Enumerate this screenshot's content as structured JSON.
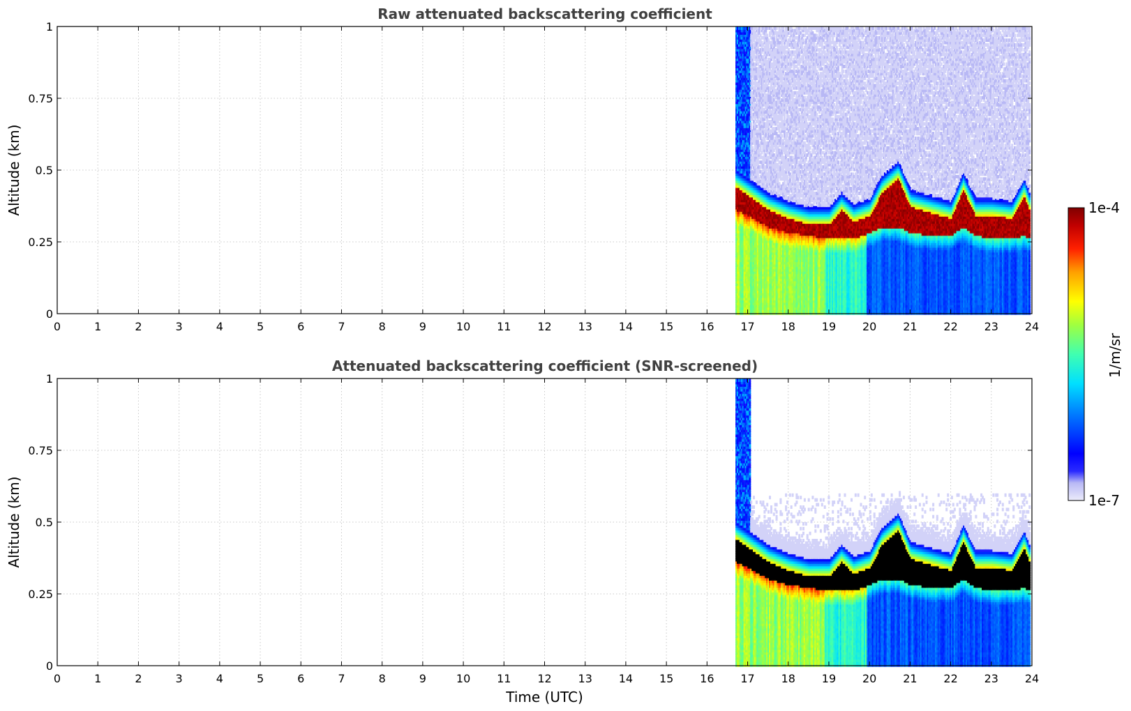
{
  "colors": {
    "background": "#ffffff",
    "title_text": "#404040",
    "grid": "#c8c8c8",
    "below_threshold": "#000000",
    "colormap": [
      "#e6e6fa",
      "#0000ff",
      "#00aaff",
      "#00ffff",
      "#66ff66",
      "#ffff00",
      "#ff8000",
      "#ff0000",
      "#8b0000"
    ]
  },
  "chart_data": [
    {
      "type": "heatmap",
      "title": "Raw attenuated backscattering coefficient",
      "xlabel": "",
      "ylabel": "Altitude (km)",
      "xlim": [
        0,
        24
      ],
      "ylim": [
        0,
        1
      ],
      "x_ticks": [
        "0",
        "1",
        "2",
        "3",
        "4",
        "5",
        "6",
        "7",
        "8",
        "9",
        "10",
        "11",
        "12",
        "13",
        "14",
        "15",
        "16",
        "17",
        "18",
        "19",
        "20",
        "21",
        "22",
        "23",
        "24"
      ],
      "y_ticks": [
        "0",
        "0.25",
        "0.5",
        "0.75",
        "1"
      ],
      "grid": true,
      "data_start_time": 16.7,
      "data_end_time": 23.95,
      "layer_top_km": [
        [
          16.7,
          0.44
        ],
        [
          17.0,
          0.41
        ],
        [
          17.5,
          0.36
        ],
        [
          18.0,
          0.33
        ],
        [
          18.5,
          0.31
        ],
        [
          19.0,
          0.31
        ],
        [
          19.3,
          0.36
        ],
        [
          19.6,
          0.32
        ],
        [
          20.0,
          0.34
        ],
        [
          20.3,
          0.42
        ],
        [
          20.7,
          0.47
        ],
        [
          21.0,
          0.37
        ],
        [
          21.5,
          0.35
        ],
        [
          22.0,
          0.33
        ],
        [
          22.3,
          0.43
        ],
        [
          22.6,
          0.34
        ],
        [
          23.0,
          0.34
        ],
        [
          23.5,
          0.33
        ],
        [
          23.8,
          0.41
        ],
        [
          23.95,
          0.35
        ]
      ],
      "layer_base_km": [
        [
          16.7,
          0.36
        ],
        [
          17.0,
          0.34
        ],
        [
          17.5,
          0.3
        ],
        [
          18.0,
          0.28
        ],
        [
          18.5,
          0.27
        ],
        [
          19.0,
          0.26
        ],
        [
          19.3,
          0.26
        ],
        [
          19.6,
          0.26
        ],
        [
          20.0,
          0.28
        ],
        [
          20.3,
          0.3
        ],
        [
          20.7,
          0.3
        ],
        [
          21.0,
          0.28
        ],
        [
          21.5,
          0.27
        ],
        [
          22.0,
          0.27
        ],
        [
          22.3,
          0.3
        ],
        [
          22.6,
          0.27
        ],
        [
          23.0,
          0.26
        ],
        [
          23.5,
          0.26
        ],
        [
          23.8,
          0.27
        ],
        [
          23.95,
          0.26
        ]
      ]
    },
    {
      "type": "heatmap",
      "title": "Attenuated backscattering coefficient (SNR-screened)",
      "xlabel": "Time (UTC)",
      "ylabel": "Altitude (km)",
      "xlim": [
        0,
        24
      ],
      "ylim": [
        0,
        1
      ],
      "x_ticks": [
        "0",
        "1",
        "2",
        "3",
        "4",
        "5",
        "6",
        "7",
        "8",
        "9",
        "10",
        "11",
        "12",
        "13",
        "14",
        "15",
        "16",
        "17",
        "18",
        "19",
        "20",
        "21",
        "22",
        "23",
        "24"
      ],
      "y_ticks": [
        "0",
        "0.25",
        "0.5",
        "0.75",
        "1"
      ],
      "grid": true,
      "data_start_time": 16.7,
      "data_end_time": 23.95,
      "layer_top_km": [
        [
          16.7,
          0.44
        ],
        [
          17.0,
          0.41
        ],
        [
          17.5,
          0.36
        ],
        [
          18.0,
          0.33
        ],
        [
          18.5,
          0.31
        ],
        [
          19.0,
          0.31
        ],
        [
          19.3,
          0.36
        ],
        [
          19.6,
          0.32
        ],
        [
          20.0,
          0.34
        ],
        [
          20.3,
          0.42
        ],
        [
          20.7,
          0.47
        ],
        [
          21.0,
          0.37
        ],
        [
          21.5,
          0.35
        ],
        [
          22.0,
          0.33
        ],
        [
          22.3,
          0.43
        ],
        [
          22.6,
          0.34
        ],
        [
          23.0,
          0.34
        ],
        [
          23.5,
          0.33
        ],
        [
          23.8,
          0.41
        ],
        [
          23.95,
          0.35
        ]
      ],
      "layer_base_km": [
        [
          16.7,
          0.36
        ],
        [
          17.0,
          0.34
        ],
        [
          17.5,
          0.3
        ],
        [
          18.0,
          0.28
        ],
        [
          18.5,
          0.27
        ],
        [
          19.0,
          0.26
        ],
        [
          19.3,
          0.26
        ],
        [
          19.6,
          0.26
        ],
        [
          20.0,
          0.28
        ],
        [
          20.3,
          0.3
        ],
        [
          20.7,
          0.3
        ],
        [
          21.0,
          0.28
        ],
        [
          21.5,
          0.27
        ],
        [
          22.0,
          0.27
        ],
        [
          22.3,
          0.3
        ],
        [
          22.6,
          0.27
        ],
        [
          23.0,
          0.26
        ],
        [
          23.5,
          0.26
        ],
        [
          23.8,
          0.27
        ],
        [
          23.95,
          0.26
        ]
      ]
    }
  ],
  "colorbar": {
    "label": "1/m/sr",
    "max_label": "1e-4",
    "min_label": "1e-7",
    "scale": "log",
    "range": [
      1e-07,
      0.0001
    ]
  }
}
